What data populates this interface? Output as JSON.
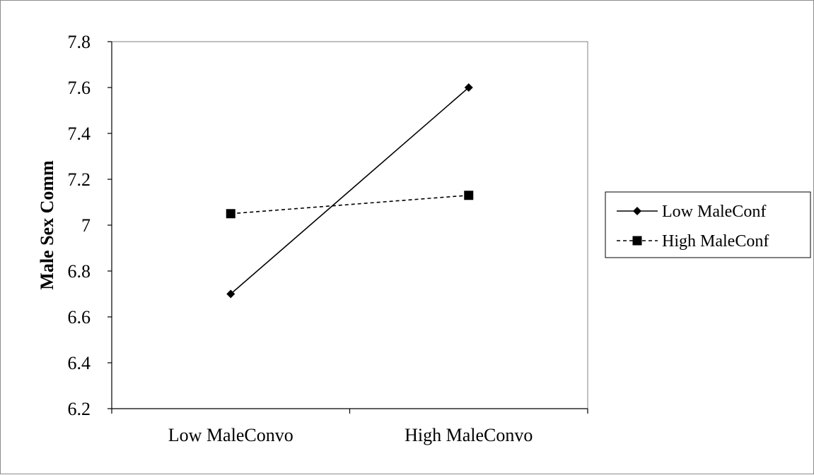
{
  "chart_data": {
    "type": "line",
    "categories": [
      "Low MaleConvo",
      "High MaleConvo"
    ],
    "series": [
      {
        "name": "Low MaleConf",
        "values": [
          6.7,
          7.6
        ],
        "line_style": "solid",
        "marker": "diamond",
        "color": "#000000"
      },
      {
        "name": "High MaleConf",
        "values": [
          7.05,
          7.13
        ],
        "line_style": "dashed",
        "marker": "square",
        "color": "#000000"
      }
    ],
    "title": "",
    "xlabel": "",
    "ylabel": "Male Sex Comm",
    "ylim": [
      6.2,
      7.8
    ],
    "yticks": [
      6.2,
      6.4,
      6.6,
      6.8,
      7,
      7.2,
      7.4,
      7.6,
      7.8
    ],
    "ytick_labels": [
      "6.2",
      "6.4",
      "6.6",
      "6.8",
      "7",
      "7.2",
      "7.4",
      "7.6",
      "7.8"
    ],
    "grid": false,
    "legend_position": "right"
  }
}
